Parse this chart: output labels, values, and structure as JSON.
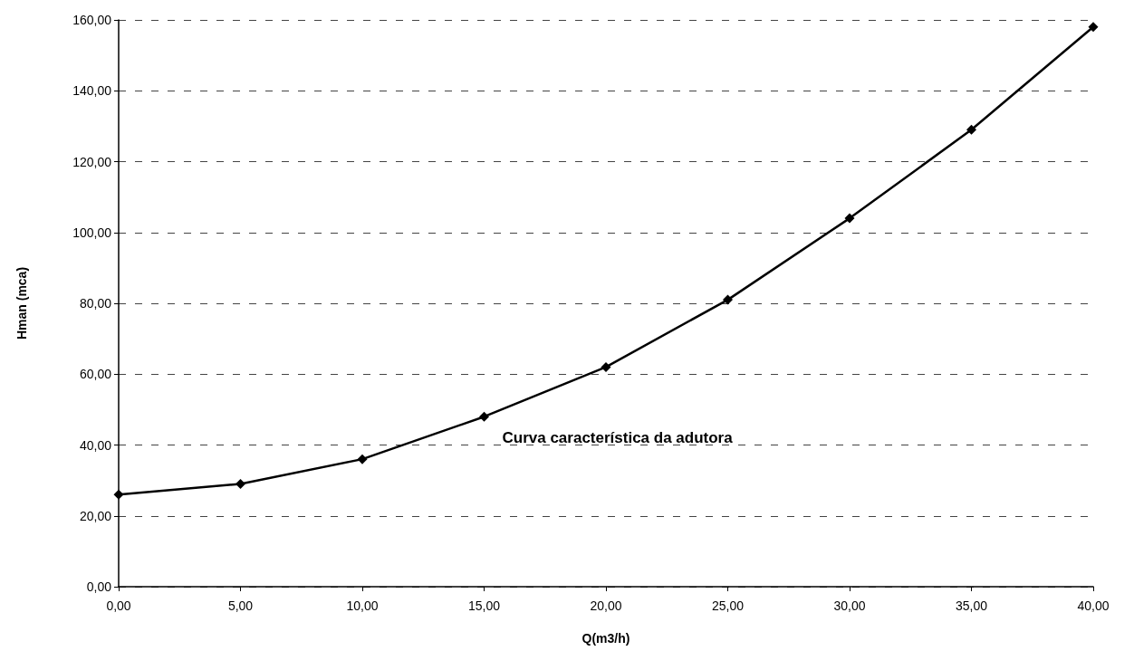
{
  "chart_data": {
    "type": "line",
    "xlabel": "Q(m3/h)",
    "ylabel": "Hman (mca)",
    "x": [
      0,
      5,
      10,
      15,
      20,
      25,
      30,
      35,
      40
    ],
    "series": [
      {
        "name": "Curva característica da adutora",
        "color": "#000000",
        "values": [
          26,
          29,
          36,
          48,
          62,
          81,
          104,
          129,
          158
        ]
      }
    ],
    "xlim": [
      0,
      40
    ],
    "xticks": [
      {
        "value": 0,
        "label": "0,00"
      },
      {
        "value": 5,
        "label": "5,00"
      },
      {
        "value": 10,
        "label": "10,00"
      },
      {
        "value": 15,
        "label": "15,00"
      },
      {
        "value": 20,
        "label": "20,00"
      },
      {
        "value": 25,
        "label": "25,00"
      },
      {
        "value": 30,
        "label": "30,00"
      },
      {
        "value": 35,
        "label": "35,00"
      },
      {
        "value": 40,
        "label": "40,00"
      }
    ],
    "ylim": [
      0,
      160
    ],
    "yticks": [
      {
        "value": 0,
        "label": "0,00"
      },
      {
        "value": 20,
        "label": "20,00"
      },
      {
        "value": 40,
        "label": "40,00"
      },
      {
        "value": 60,
        "label": "60,00"
      },
      {
        "value": 80,
        "label": "80,00"
      },
      {
        "value": 100,
        "label": "100,00"
      },
      {
        "value": 120,
        "label": "120,00"
      },
      {
        "value": 140,
        "label": "140,00"
      },
      {
        "value": 160,
        "label": "160,00"
      }
    ],
    "grid": "y",
    "marker": "diamond",
    "line_style": "solid",
    "legend": false
  }
}
